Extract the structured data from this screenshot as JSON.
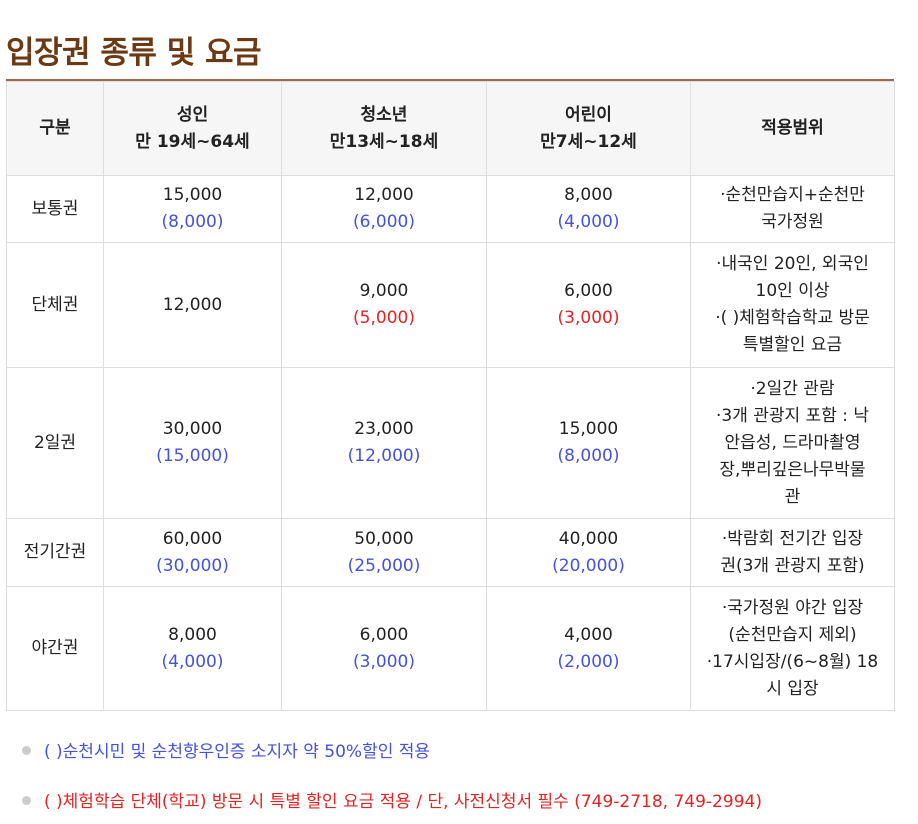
{
  "title": "입장권 종류 및 요금",
  "table": {
    "headers": [
      {
        "line1": "구분",
        "line2": ""
      },
      {
        "line1": "성인",
        "line2": "만 19세~64세"
      },
      {
        "line1": "청소년",
        "line2": "만13세~18세"
      },
      {
        "line1": "어린이",
        "line2": "만7세~12세"
      },
      {
        "line1": "적용범위",
        "line2": ""
      }
    ],
    "rows": [
      {
        "type": "보통권",
        "adult": {
          "price": "15,000",
          "discount": "(8,000)"
        },
        "youth": {
          "price": "12,000",
          "discount": "(6,000)"
        },
        "child": {
          "price": "8,000",
          "discount": "(4,000)"
        },
        "scope": "·순천만습지+순천만\n국가정원"
      },
      {
        "type": "단체권",
        "adult": {
          "price": "12,000",
          "discount": ""
        },
        "youth": {
          "price": "9,000",
          "discount": "(5,000)"
        },
        "child": {
          "price": "6,000",
          "discount": "(3,000)"
        },
        "scope": "·내국인 20인, 외국인\n10인 이상\n·( )체험학습학교 방문\n특별할인 요금"
      },
      {
        "type": "2일권",
        "adult": {
          "price": "30,000",
          "discount": "(15,000)"
        },
        "youth": {
          "price": "23,000",
          "discount": "(12,000)"
        },
        "child": {
          "price": "15,000",
          "discount": "(8,000)"
        },
        "scope": "·2일간 관람\n·3개 관광지 포함 : 낙\n안읍성, 드라마촬영\n장,뿌리깊은나무박물\n관"
      },
      {
        "type": "전기간권",
        "adult": {
          "price": "60,000",
          "discount": "(30,000)"
        },
        "youth": {
          "price": "50,000",
          "discount": "(25,000)"
        },
        "child": {
          "price": "40,000",
          "discount": "(20,000)"
        },
        "scope": "·박람회 전기간 입장\n권(3개 관광지 포함)"
      },
      {
        "type": "야간권",
        "adult": {
          "price": "8,000",
          "discount": "(4,000)"
        },
        "youth": {
          "price": "6,000",
          "discount": "(3,000)"
        },
        "child": {
          "price": "4,000",
          "discount": "(2,000)"
        },
        "scope": "·국가정원 야간 입장\n(순천만습지 제외)\n·17시입장/(6~8월) 18\n시 입장"
      }
    ]
  },
  "notes": [
    "( )순천시민 및 순천향우인증 소지자 약 50%할인 적용",
    "( )체험학습 단체(학교) 방문 시 특별 할인 요금 적용 / 단, 사전신청서 필수 (749-2718, 749-2994)"
  ],
  "colors": {
    "title": "#6b3a14",
    "rule": "#9c6a4a",
    "citizen_discount": "#4652d8",
    "school_discount": "#e02424",
    "header_bg": "#f6f6f6",
    "border": "#dedede"
  }
}
